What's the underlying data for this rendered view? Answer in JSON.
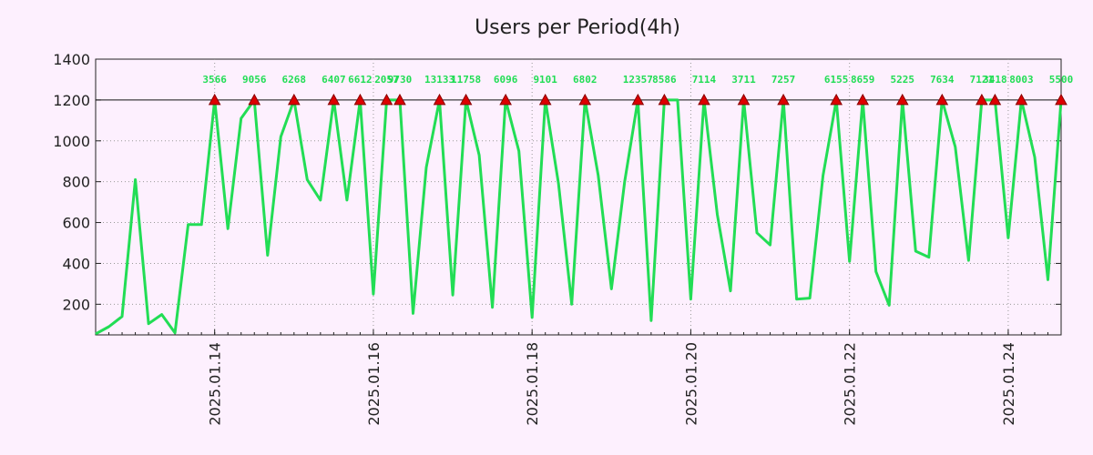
{
  "chart_data": {
    "type": "line",
    "title": "Users per Period(4h)",
    "xlabel": "",
    "ylabel": "",
    "ylim": [
      50,
      1400
    ],
    "cap_value": 1200,
    "yticks": [
      200,
      400,
      600,
      800,
      1000,
      1200,
      1400
    ],
    "xticks": [
      {
        "pos": 9,
        "label": "2025.01.14"
      },
      {
        "pos": 21,
        "label": "2025.01.16"
      },
      {
        "pos": 33,
        "label": "2025.01.18"
      },
      {
        "pos": 45,
        "label": "2025.01.20"
      },
      {
        "pos": 57,
        "label": "2025.01.22"
      },
      {
        "pos": 69,
        "label": "2025.01.24"
      }
    ],
    "x": [
      0,
      1,
      2,
      3,
      4,
      5,
      6,
      7,
      8,
      9,
      10,
      11,
      12,
      13,
      14,
      15,
      16,
      17,
      18,
      19,
      20,
      21,
      22,
      23,
      24,
      25,
      26,
      27,
      28,
      29,
      30,
      31,
      32,
      33,
      34,
      35,
      36,
      37,
      38,
      39,
      40,
      41,
      42,
      43,
      44,
      45,
      46,
      47,
      48,
      49,
      50,
      51,
      52,
      53,
      54,
      55,
      56,
      57,
      58,
      59,
      60,
      61,
      62,
      63,
      64,
      65,
      66,
      67,
      68,
      69,
      70,
      71,
      72,
      73
    ],
    "values": [
      55,
      90,
      140,
      810,
      105,
      150,
      60,
      590,
      590,
      1200,
      570,
      1110,
      1200,
      440,
      1020,
      1200,
      810,
      710,
      1200,
      710,
      1200,
      250,
      1200,
      1200,
      155,
      870,
      1200,
      245,
      1200,
      930,
      185,
      1200,
      950,
      135,
      1200,
      790,
      200,
      1200,
      830,
      275,
      800,
      1200,
      120,
      1200,
      1200,
      225,
      1200,
      640,
      265,
      1200,
      550,
      490,
      1200,
      225,
      230,
      830,
      1200,
      410,
      1200,
      360,
      195,
      1200,
      460,
      430,
      1200,
      970,
      415,
      1200,
      1200,
      525,
      1200,
      920,
      320,
      1200
    ],
    "series_name": "Users",
    "series_color": "#22dd55",
    "marker_color": "#dd0000",
    "capped_labels": [
      {
        "x": 9,
        "label": "3566"
      },
      {
        "x": 12,
        "label": "9056"
      },
      {
        "x": 15,
        "label": "6268"
      },
      {
        "x": 18,
        "label": "6407"
      },
      {
        "x": 20,
        "label": "6612"
      },
      {
        "x": 22,
        "label": "2057"
      },
      {
        "x": 23,
        "label": "9730"
      },
      {
        "x": 26,
        "label": "13133"
      },
      {
        "x": 28,
        "label": "11758"
      },
      {
        "x": 31,
        "label": "6096"
      },
      {
        "x": 34,
        "label": "9101"
      },
      {
        "x": 37,
        "label": "6802"
      },
      {
        "x": 41,
        "label": "12357"
      },
      {
        "x": 43,
        "label": "8586"
      },
      {
        "x": 46,
        "label": "7114"
      },
      {
        "x": 49,
        "label": "3711"
      },
      {
        "x": 52,
        "label": "7257"
      },
      {
        "x": 56,
        "label": "6155"
      },
      {
        "x": 58,
        "label": "8659"
      },
      {
        "x": 61,
        "label": "5225"
      },
      {
        "x": 64,
        "label": "7634"
      },
      {
        "x": 67,
        "label": "7121"
      },
      {
        "x": 68,
        "label": "3418"
      },
      {
        "x": 70,
        "label": "8003"
      },
      {
        "x": 73,
        "label": "5500"
      }
    ]
  }
}
